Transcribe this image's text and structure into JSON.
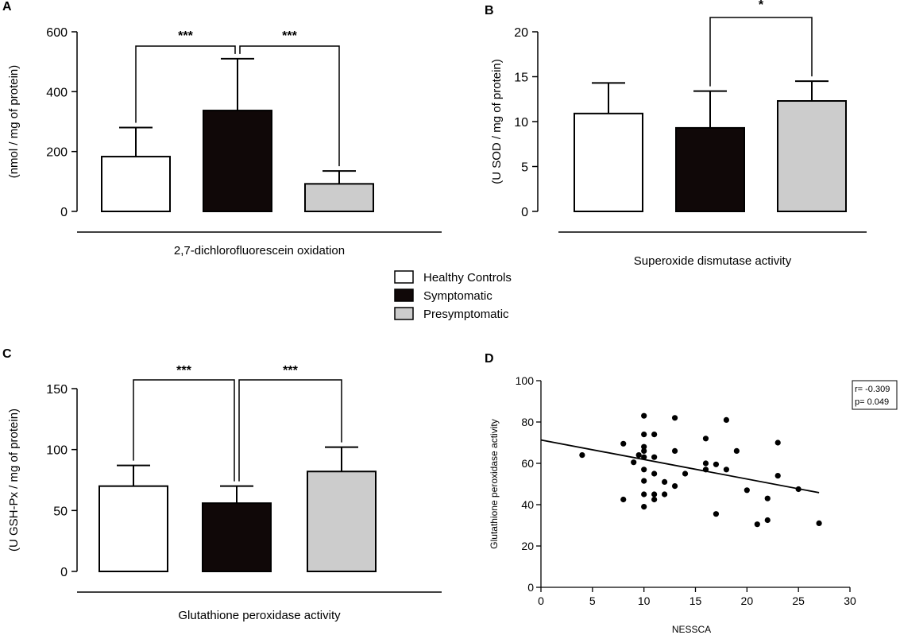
{
  "legend": [
    {
      "label": "Healthy Controls",
      "color": "#ffffff"
    },
    {
      "label": "Symptomatic",
      "color": "#100808"
    },
    {
      "label": "Presymptomatic",
      "color": "#cccccc"
    }
  ],
  "chart_data": [
    {
      "panel": "A",
      "type": "bar",
      "categories": [
        "Healthy Controls",
        "Symptomatic",
        "Presymptomatic"
      ],
      "values": [
        183,
        337,
        92
      ],
      "errors": [
        97,
        173,
        43
      ],
      "ylim": [
        0,
        600
      ],
      "yticks": [
        0,
        200,
        400,
        600
      ],
      "ylabel": "(nmol / mg of protein)",
      "xlabel": "2,7-dichlorofluorescein oxidation",
      "significance": [
        {
          "from": 0,
          "to": 1,
          "label": "***"
        },
        {
          "from": 1,
          "to": 2,
          "label": "***"
        }
      ]
    },
    {
      "panel": "B",
      "type": "bar",
      "categories": [
        "Healthy Controls",
        "Symptomatic",
        "Presymptomatic"
      ],
      "values": [
        10.9,
        9.3,
        12.3
      ],
      "errors": [
        3.4,
        4.1,
        2.2
      ],
      "ylim": [
        0,
        20
      ],
      "yticks": [
        0,
        5,
        10,
        15,
        20
      ],
      "ylabel": "(U SOD / mg of protein)",
      "xlabel": "Superoxide dismutase activity",
      "significance": [
        {
          "from": 1,
          "to": 2,
          "label": "*"
        }
      ]
    },
    {
      "panel": "C",
      "type": "bar",
      "categories": [
        "Healthy Controls",
        "Symptomatic",
        "Presymptomatic"
      ],
      "values": [
        70,
        56,
        82
      ],
      "errors": [
        17,
        14,
        20
      ],
      "ylim": [
        0,
        150
      ],
      "yticks": [
        0,
        50,
        100,
        150
      ],
      "ylabel": "(U GSH-Px / mg of protein)",
      "xlabel": "Glutathione peroxidase activity",
      "significance": [
        {
          "from": 0,
          "to": 1,
          "label": "***"
        },
        {
          "from": 1,
          "to": 2,
          "label": "***"
        }
      ]
    },
    {
      "panel": "D",
      "type": "scatter",
      "xlabel": "NESSCA",
      "ylabel": "Glutathione peroxidase activity",
      "xlim": [
        0,
        30
      ],
      "ylim": [
        0,
        100
      ],
      "xticks": [
        0,
        5,
        10,
        15,
        20,
        25,
        30
      ],
      "yticks": [
        0,
        20,
        40,
        60,
        80,
        100
      ],
      "stats": [
        "r= -0.309",
        "p= 0.049"
      ],
      "regression": {
        "x": [
          0,
          27
        ],
        "y": [
          71.3,
          45.8
        ]
      },
      "points": [
        [
          4,
          64
        ],
        [
          8,
          69.5
        ],
        [
          8,
          42.5
        ],
        [
          9,
          60.5
        ],
        [
          9.5,
          64
        ],
        [
          10,
          83
        ],
        [
          10,
          74
        ],
        [
          10,
          68
        ],
        [
          10,
          66
        ],
        [
          10,
          63
        ],
        [
          10,
          57
        ],
        [
          10,
          51.5
        ],
        [
          10,
          45
        ],
        [
          10,
          39
        ],
        [
          11,
          74
        ],
        [
          11,
          63
        ],
        [
          11,
          55
        ],
        [
          11,
          45
        ],
        [
          11,
          42.5
        ],
        [
          12,
          51
        ],
        [
          12,
          45
        ],
        [
          13,
          82
        ],
        [
          13,
          66
        ],
        [
          13,
          49
        ],
        [
          14,
          55
        ],
        [
          16,
          72
        ],
        [
          16,
          60
        ],
        [
          16,
          57
        ],
        [
          17,
          59.5
        ],
        [
          17,
          35.5
        ],
        [
          18,
          81
        ],
        [
          18,
          57
        ],
        [
          19,
          66
        ],
        [
          20,
          47
        ],
        [
          21,
          30.5
        ],
        [
          22,
          43
        ],
        [
          22,
          32.5
        ],
        [
          23,
          70
        ],
        [
          23,
          54
        ],
        [
          25,
          47.5
        ],
        [
          27,
          31
        ]
      ]
    }
  ]
}
